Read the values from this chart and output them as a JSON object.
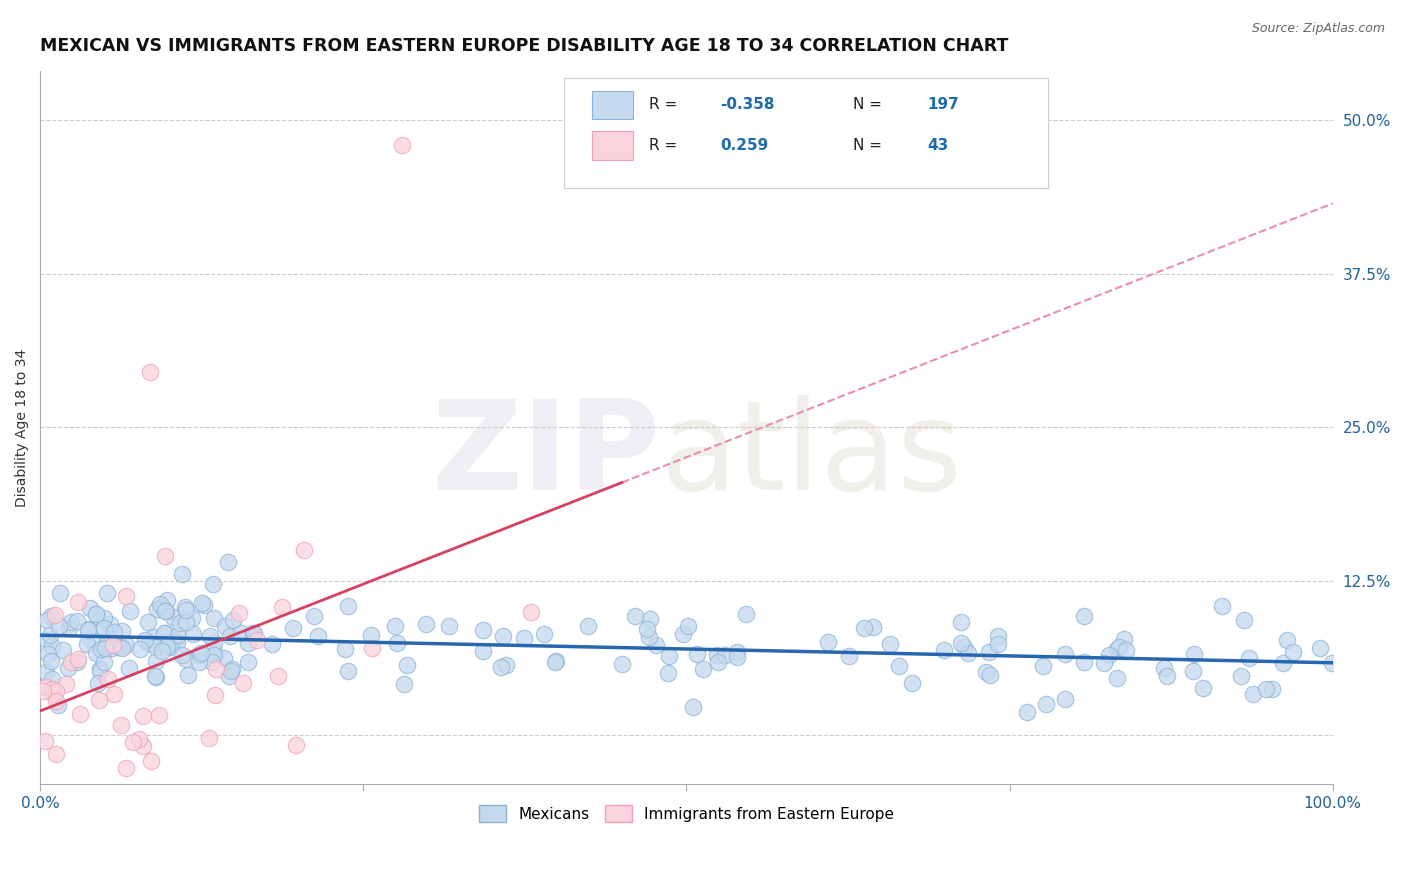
{
  "title": "MEXICAN VS IMMIGRANTS FROM EASTERN EUROPE DISABILITY AGE 18 TO 34 CORRELATION CHART",
  "source": "Source: ZipAtlas.com",
  "ylabel": "Disability Age 18 to 34",
  "xlim": [
    0.0,
    1.0
  ],
  "ylim": [
    -0.04,
    0.54
  ],
  "xticks": [
    0.0,
    0.25,
    0.5,
    0.75,
    1.0
  ],
  "xtick_labels": [
    "0.0%",
    "",
    "",
    "",
    "100.0%"
  ],
  "ytick_positions": [
    0.0,
    0.125,
    0.25,
    0.375,
    0.5
  ],
  "ytick_labels": [
    "",
    "12.5%",
    "25.0%",
    "37.5%",
    "50.0%"
  ],
  "blue_R": -0.358,
  "blue_N": 197,
  "pink_R": 0.259,
  "pink_N": 43,
  "blue_fill_color": "#c5d9ee",
  "blue_edge_color": "#8ab4d8",
  "pink_fill_color": "#fad4dc",
  "pink_edge_color": "#f0a0b8",
  "blue_line_color": "#2866b0",
  "pink_line_color": "#d94060",
  "pink_dash_color": "#e890a8",
  "grid_color": "#cccccc",
  "background_color": "#ffffff",
  "legend_R_color": "#1a6ab5",
  "legend_N_color": "#1a6ab5",
  "title_fontsize": 12.5,
  "axis_label_fontsize": 10,
  "tick_fontsize": 11,
  "source_fontsize": 9,
  "legend_fontsize": 11
}
